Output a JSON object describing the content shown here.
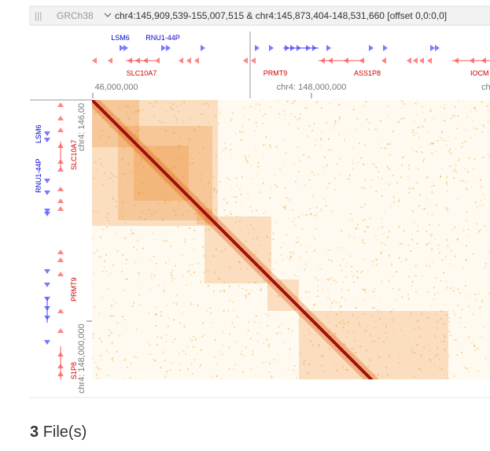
{
  "header": {
    "assembly": "GRCh38",
    "location": "chr4:145,909,539-155,007,515 & chr4:145,873,404-148,531,660 [offset 0,0:0,0]"
  },
  "top_track": {
    "genes_plus": [
      "LSM6",
      "RNU1-44P"
    ],
    "genes_minus": [
      "SLC10A7",
      "PRMT9",
      "ASS1P8",
      "IOCM"
    ]
  },
  "top_axis": {
    "ticks": [
      "46,000,000",
      "chr4: 148,000,000",
      "ch"
    ]
  },
  "left_track": {
    "genes_plus": [
      "LSM6",
      "RNU1-44P"
    ],
    "genes_minus": [
      "SLC10A7",
      "PRMT9",
      "S1P8"
    ]
  },
  "left_axis": {
    "ticks": [
      "chr4: 146,00",
      "chr4: 148,000,000"
    ]
  },
  "footer": {
    "count": 3,
    "label": "File(s)"
  }
}
